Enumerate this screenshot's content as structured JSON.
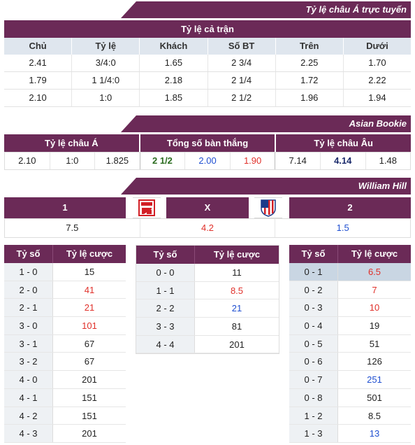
{
  "sections": {
    "asian_live": "Tỷ lệ châu Á trực tuyến",
    "asian_bookie": "Asian Bookie",
    "william_hill": "William Hill"
  },
  "full_match": {
    "title": "Tỷ lệ cả trận",
    "headers": [
      "Chủ",
      "Tỷ lệ",
      "Khách",
      "Số BT",
      "Trên",
      "Dưới"
    ],
    "rows": [
      [
        "2.41",
        "3/4:0",
        "1.65",
        "2 3/4",
        "2.25",
        "1.70"
      ],
      [
        "1.79",
        "1 1/4:0",
        "2.18",
        "2 1/4",
        "1.72",
        "2.22"
      ],
      [
        "2.10",
        "1:0",
        "1.85",
        "2 1/2",
        "1.96",
        "1.94"
      ]
    ]
  },
  "bookie": {
    "headers": [
      "Tỷ lệ châu Á",
      "Tổng số bàn thắng",
      "Tỷ lệ châu Âu"
    ],
    "values": [
      "2.10",
      "1:0",
      "1.825",
      "2 1/2",
      "2.00",
      "1.90",
      "7.14",
      "4.14",
      "1.48"
    ]
  },
  "william": {
    "labels": [
      "1",
      "X",
      "2"
    ],
    "odds": [
      "7.5",
      "4.2",
      "1.5"
    ],
    "home_logo": "home-team-crest-icon",
    "away_logo": "atletico-crest-icon"
  },
  "score_headers": [
    "Tỷ số",
    "Tỷ lệ cược"
  ],
  "home_scores": [
    [
      "1 - 0",
      "15"
    ],
    [
      "2 - 0",
      "41"
    ],
    [
      "2 - 1",
      "21"
    ],
    [
      "3 - 0",
      "101"
    ],
    [
      "3 - 1",
      "67"
    ],
    [
      "3 - 2",
      "67"
    ],
    [
      "4 - 0",
      "201"
    ],
    [
      "4 - 1",
      "151"
    ],
    [
      "4 - 2",
      "151"
    ],
    [
      "4 - 3",
      "201"
    ]
  ],
  "draw_scores": [
    [
      "0 - 0",
      "11"
    ],
    [
      "1 - 1",
      "8.5"
    ],
    [
      "2 - 2",
      "21"
    ],
    [
      "3 - 3",
      "81"
    ],
    [
      "4 - 4",
      "201"
    ]
  ],
  "away_scores": [
    [
      "0 - 1",
      "6.5"
    ],
    [
      "0 - 2",
      "7"
    ],
    [
      "0 - 3",
      "10"
    ],
    [
      "0 - 4",
      "19"
    ],
    [
      "0 - 5",
      "51"
    ],
    [
      "0 - 6",
      "126"
    ],
    [
      "0 - 7",
      "251"
    ],
    [
      "0 - 8",
      "501"
    ],
    [
      "1 - 2",
      "8.5"
    ],
    [
      "1 - 3",
      "13"
    ]
  ],
  "colors": {
    "primary": "#6b2a57",
    "subheader": "#dfe6ee",
    "red": "#e0302a",
    "blue": "#1f4fd1",
    "highlight": "#c9d6e3"
  }
}
